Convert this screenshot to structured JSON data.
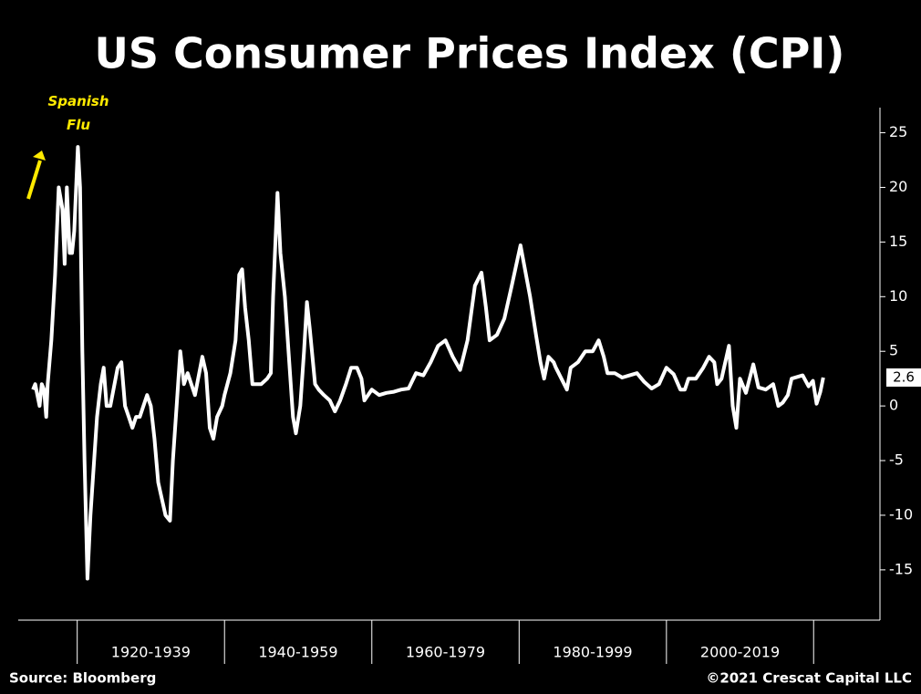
{
  "chart_data": {
    "type": "line",
    "title": "US Consumer Prices Index (CPI)",
    "source": "Source: Bloomberg",
    "copyright": "©2021 Crescat Capital LLC",
    "annotation": "Spanish Flu",
    "color": "#ffffff",
    "x": [
      1914,
      1914.3,
      1914.6,
      1914.9,
      1915.2,
      1915.5,
      1915.8,
      1916,
      1916.5,
      1917,
      1917.5,
      1918,
      1918.3,
      1918.6,
      1919,
      1919.3,
      1919.6,
      1920.1,
      1920.4,
      1920.7,
      1921,
      1921.4,
      1921.8,
      1922.3,
      1922.7,
      1923.2,
      1923.6,
      1924,
      1924.5,
      1925.5,
      1926,
      1926.5,
      1927,
      1927.5,
      1928,
      1928.5,
      1929,
      1929.5,
      1930,
      1930.5,
      1931,
      1932,
      1932.6,
      1933,
      1933.5,
      1934,
      1934.5,
      1935,
      1935.5,
      1936,
      1937,
      1937.5,
      1938,
      1938.5,
      1939,
      1939.7,
      1940,
      1940.8,
      1941.5,
      1942,
      1942.4,
      1942.8,
      1943.3,
      1943.8,
      1944.5,
      1945,
      1945.8,
      1946.3,
      1946.6,
      1947.2,
      1947.6,
      1948.2,
      1948.7,
      1949.3,
      1949.7,
      1950.3,
      1950.8,
      1951.2,
      1951.6,
      1952.3,
      1952.8,
      1953.5,
      1954.3,
      1955,
      1955.7,
      1956.5,
      1957.2,
      1958,
      1958.6,
      1959,
      1960,
      1961,
      1962,
      1963,
      1964,
      1965,
      1966,
      1967,
      1968,
      1969,
      1970,
      1971,
      1972,
      1973,
      1974,
      1974.9,
      1975.5,
      1976,
      1977,
      1978,
      1979,
      1980.2,
      1980.8,
      1981.5,
      1982.3,
      1982.9,
      1983.4,
      1984,
      1984.7,
      1985,
      1986.5,
      1987,
      1988,
      1989,
      1990,
      1990.8,
      1991.5,
      1992,
      1993,
      1994,
      1995,
      1996,
      1997,
      1998,
      1999,
      2000,
      2001,
      2001.9,
      2002.5,
      2003,
      2004,
      2005,
      2005.8,
      2006.5,
      2006.9,
      2007.5,
      2008.5,
      2009,
      2009.5,
      2010,
      2010.8,
      2011.8,
      2012.5,
      2013.5,
      2014.5,
      2015.2,
      2015.8,
      2016.5,
      2017,
      2018.5,
      2019.3,
      2019.9,
      2020.4,
      2020.9,
      2021.3
    ],
    "values": [
      1.5,
      2,
      1,
      0,
      2,
      1.5,
      -1,
      2,
      6,
      12,
      20,
      18,
      13,
      20,
      14,
      14,
      16,
      23.7,
      20,
      5,
      -5,
      -15.8,
      -10,
      -5,
      -1,
      2,
      3.5,
      0,
      0,
      3.5,
      4,
      0,
      -1,
      -2,
      -1,
      -1,
      0,
      1,
      0,
      -3,
      -7,
      -10,
      -10.5,
      -5,
      0,
      5,
      2,
      3,
      2,
      1,
      4.5,
      3,
      -2,
      -3,
      -1,
      0,
      1,
      3,
      6,
      12,
      12.5,
      9,
      6,
      2,
      2,
      2,
      2.5,
      3,
      10,
      19.5,
      14,
      10,
      5,
      -1,
      -2.5,
      0,
      5,
      9.5,
      7,
      2,
      1.5,
      1,
      0.5,
      -0.5,
      0.5,
      2,
      3.5,
      3.5,
      2.5,
      0.5,
      1.5,
      1,
      1.2,
      1.3,
      1.5,
      1.6,
      3,
      2.8,
      4,
      5.5,
      6,
      4.5,
      3.3,
      6,
      11,
      12.2,
      9,
      6,
      6.5,
      8,
      11,
      14.7,
      12.5,
      10,
      6.5,
      4,
      2.5,
      4.5,
      4,
      3.5,
      1.5,
      3.5,
      4,
      5,
      5,
      6,
      4.5,
      3,
      3,
      2.6,
      2.8,
      3,
      2.2,
      1.6,
      2,
      3.5,
      2.9,
      1.5,
      1.5,
      2.5,
      2.5,
      3.5,
      4.5,
      4,
      2,
      2.5,
      5.5,
      0,
      -2,
      2.5,
      1.2,
      3.8,
      1.7,
      1.5,
      2,
      0,
      0.3,
      1,
      2.5,
      2.8,
      1.8,
      2.3,
      0.2,
      1.3,
      2.6
    ],
    "xlim": [
      1912,
      2029
    ],
    "xticks": [
      {
        "value": 1930,
        "label": "1920-1939"
      },
      {
        "value": 1950,
        "label": "1940-1959"
      },
      {
        "value": 1970,
        "label": "1960-1979"
      },
      {
        "value": 1990,
        "label": "1980-1999"
      },
      {
        "value": 2010,
        "label": "2000-2019"
      }
    ],
    "ylim": [
      -19.6,
      27.3
    ],
    "yticks": [
      -15,
      -10,
      -5,
      0,
      5,
      10,
      15,
      20,
      25
    ],
    "y_axis_side": "right"
  }
}
